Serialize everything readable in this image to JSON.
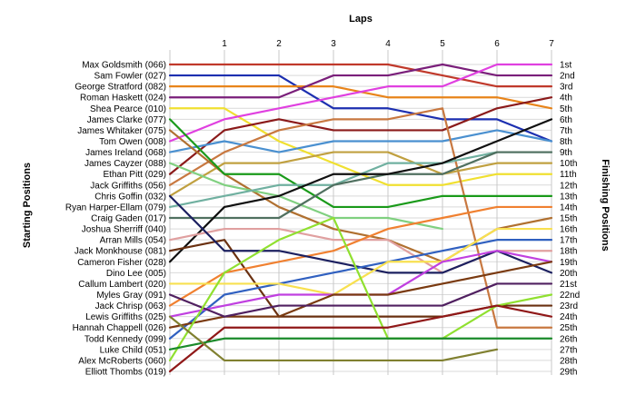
{
  "chart_data": {
    "type": "line",
    "title": "Laps",
    "ylabel_left": "Starting Positions",
    "ylabel_right": "Finishing Positions",
    "x": [
      0,
      1,
      2,
      3,
      4,
      5,
      6,
      7
    ],
    "x_tick_labels": [
      "1",
      "2",
      "3",
      "4",
      "5",
      "6",
      "7"
    ],
    "y_range": [
      1,
      29
    ],
    "y_inverted": true,
    "grid": true,
    "start_labels": [
      "Max Goldsmith (066)",
      "Sam Fowler (027)",
      "George Stratford (082)",
      "Roman Haskett (024)",
      "Shea Pearce (010)",
      "James Clarke (077)",
      "James Whitaker (075)",
      "Tom Owen (008)",
      "James Ireland (068)",
      "James Cayzer (088)",
      "Ethan Pitt (029)",
      "Jack Griffiths (056)",
      "Chris Goffin (032)",
      "Ryan Harper-Ellam (079)",
      "Craig Gaden (017)",
      "Joshua Sherriff (040)",
      "Arran Mills (054)",
      "Jack Monkhouse (081)",
      "Cameron Fisher (028)",
      "Dino Lee (005)",
      "Callum Lambert (020)",
      "Myles Gray (091)",
      "Jack Chrisp (063)",
      "Lewis Griffiths (025)",
      "Hannah Chappell (026)",
      "Todd Kennedy (099)",
      "Luke Child (051)",
      "Alex McRoberts (060)",
      "Elliott Thombs (019)"
    ],
    "finish_labels": [
      "1st",
      "2nd",
      "3rd",
      "4th",
      "5th",
      "6th",
      "7th",
      "8th",
      "9th",
      "10th",
      "11th",
      "12th",
      "13th",
      "14th",
      "15th",
      "16th",
      "17th",
      "18th",
      "19th",
      "20th",
      "21st",
      "22nd",
      "23rd",
      "24th",
      "25th",
      "26th",
      "27th",
      "28th",
      "29th"
    ],
    "series": [
      {
        "color": "#c0392b",
        "values": [
          1,
          1,
          1,
          1,
          1,
          2,
          3,
          3
        ]
      },
      {
        "color": "#1c2fb0",
        "values": [
          2,
          2,
          2,
          5,
          5,
          6,
          6,
          8
        ]
      },
      {
        "color": "#e8841a",
        "values": [
          3,
          3,
          3,
          3,
          4,
          4,
          4,
          5
        ]
      },
      {
        "color": "#7a1f7a",
        "values": [
          4,
          4,
          4,
          2,
          2,
          1,
          2,
          2
        ]
      },
      {
        "color": "#f0e030",
        "values": [
          5,
          5,
          8,
          10,
          12,
          12,
          11,
          11
        ]
      },
      {
        "color": "#e040e0",
        "values": [
          8,
          6,
          5,
          4,
          3,
          3,
          1,
          1
        ]
      },
      {
        "color": "#8b1a1a",
        "values": [
          11,
          7,
          6,
          7,
          7,
          7,
          5,
          4
        ]
      },
      {
        "color": "#4a90d0",
        "values": [
          9,
          8,
          9,
          8,
          8,
          8,
          7,
          8
        ]
      },
      {
        "color": "#c87840",
        "values": [
          12,
          9,
          7,
          6,
          6,
          5,
          25,
          25
        ]
      },
      {
        "color": "#c0a040",
        "values": [
          13,
          10,
          10,
          9,
          9,
          11,
          10,
          10
        ]
      },
      {
        "color": "#b07030",
        "values": [
          7,
          11,
          14,
          16,
          17,
          19,
          16,
          15
        ]
      },
      {
        "color": "#1a9a1a",
        "values": [
          6,
          11,
          11,
          14,
          14,
          13,
          13,
          13
        ]
      },
      {
        "color": "#80d080",
        "values": [
          10,
          12,
          13,
          15,
          15,
          16,
          null,
          null
        ]
      },
      {
        "color": "#70b0a0",
        "values": [
          14,
          13,
          12,
          12,
          10,
          10,
          9,
          9
        ]
      },
      {
        "color": "#507060",
        "values": [
          15,
          15,
          15,
          12,
          11,
          11,
          9,
          9
        ]
      },
      {
        "color": "#101010",
        "values": [
          19,
          14,
          13,
          11,
          11,
          10,
          8,
          6
        ]
      },
      {
        "color": "#e0a0a0",
        "values": [
          17,
          16,
          16,
          17,
          17,
          20,
          18,
          18
        ]
      },
      {
        "color": "#6a3010",
        "values": [
          18,
          17,
          24,
          24,
          24,
          24,
          23,
          23
        ]
      },
      {
        "color": "#f08030",
        "values": [
          23,
          20,
          19,
          18,
          16,
          15,
          14,
          14
        ]
      },
      {
        "color": "#1c2060",
        "values": [
          13,
          18,
          18,
          19,
          20,
          20,
          18,
          20
        ]
      },
      {
        "color": "#3060c0",
        "values": [
          26,
          22,
          21,
          20,
          19,
          18,
          17,
          17
        ]
      },
      {
        "color": "#f8e050",
        "values": [
          21,
          21,
          21,
          22,
          19,
          19,
          16,
          16
        ]
      },
      {
        "color": "#c040e0",
        "values": [
          24,
          23,
          22,
          22,
          22,
          19,
          18,
          19
        ]
      },
      {
        "color": "#7a3a10",
        "values": [
          25,
          24,
          24,
          22,
          22,
          21,
          20,
          19
        ]
      },
      {
        "color": "#502060",
        "values": [
          22,
          24,
          23,
          23,
          23,
          23,
          21,
          21
        ]
      },
      {
        "color": "#90e030",
        "values": [
          28,
          20,
          17,
          15,
          26,
          26,
          23,
          22
        ]
      },
      {
        "color": "#901818",
        "values": [
          29,
          25,
          25,
          25,
          25,
          24,
          23,
          24
        ]
      },
      {
        "color": "#1a8a2a",
        "values": [
          27,
          26,
          26,
          26,
          26,
          26,
          26,
          26
        ]
      },
      {
        "color": "#808030",
        "values": [
          24,
          28,
          28,
          28,
          28,
          28,
          27,
          null
        ]
      }
    ]
  }
}
